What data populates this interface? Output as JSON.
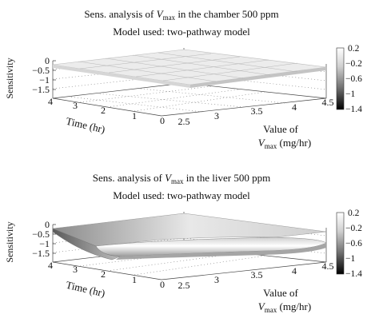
{
  "chart_data": [
    {
      "type": "surface",
      "title_line1": {
        "prefix": "Sens. analysis of ",
        "var": "V",
        "sub": "max",
        "suffix": " in the chamber 500 ppm"
      },
      "title_line2": "Model used: two-pathway model",
      "zlabel": "Sensitivity",
      "ylabel": "Time (hr)",
      "xlabel_line1": "Value of",
      "xlabel_line2": {
        "var": "V",
        "sub": "max",
        "suffix": " (mg/hr)"
      },
      "z_ticks": [
        "0",
        "−0.5",
        "−1",
        "−1.5"
      ],
      "y_ticks": [
        "4",
        "3",
        "2",
        "1",
        "0"
      ],
      "x_ticks": [
        "2.5",
        "3",
        "3.5",
        "4",
        "4.5"
      ],
      "x_range": [
        2.5,
        4.5
      ],
      "y_range": [
        0,
        4
      ],
      "z_range": [
        -1.5,
        0
      ],
      "surface": "flat near 0 across all Vmax and time",
      "colorbar": {
        "ticks": [
          "0.2",
          "−0.2",
          "−0.6",
          "−1",
          "−1.4"
        ],
        "range": [
          -1.4,
          0.2
        ]
      }
    },
    {
      "type": "surface",
      "title_line1": {
        "prefix": "Sens. analysis of ",
        "var": "V",
        "sub": "max",
        "suffix": " in the liver 500 ppm"
      },
      "title_line2": "Model used: two-pathway model",
      "zlabel": "Sensitivity",
      "ylabel": "Time (hr)",
      "xlabel_line1": "Value of",
      "xlabel_line2": {
        "var": "V",
        "sub": "max",
        "suffix": " (mg/hr)"
      },
      "z_ticks": [
        "0",
        "−0.5",
        "−1",
        "−1.5"
      ],
      "y_ticks": [
        "4",
        "3",
        "2",
        "1",
        "0"
      ],
      "x_ticks": [
        "2.5",
        "3",
        "3.5",
        "4",
        "4.5"
      ],
      "x_range": [
        2.5,
        4.5
      ],
      "y_range": [
        0,
        4
      ],
      "z_range": [
        -1.5,
        0
      ],
      "surface": "near 0 at early time, dropping to about -1 after exposure ends",
      "colorbar": {
        "ticks": [
          "0.2",
          "−0.2",
          "−0.6",
          "−1",
          "−1.4"
        ],
        "range": [
          -1.4,
          0.2
        ]
      }
    }
  ]
}
